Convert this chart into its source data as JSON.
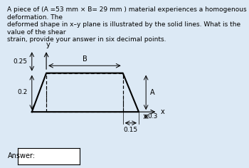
{
  "title_text": "A piece of (A =53 mm × B= 29 mm ) material experiences a homogenous deformation. The\ndeformed shape in x–y plane is illustrated by the solid lines. What is the value of the shear\nstrain, provide your answer in six decimal points.",
  "bg_color": "#dce9f5",
  "diagram_bg": "#ffffff",
  "label_025": "0.25",
  "label_02": "0.2",
  "label_015": "0.15",
  "label_03": "0.3",
  "label_A": "A",
  "label_B": "B",
  "label_x": "x",
  "label_y": "y",
  "answer_label": "Answer:",
  "title_fontsize": 6.5,
  "label_fontsize": 7.0
}
